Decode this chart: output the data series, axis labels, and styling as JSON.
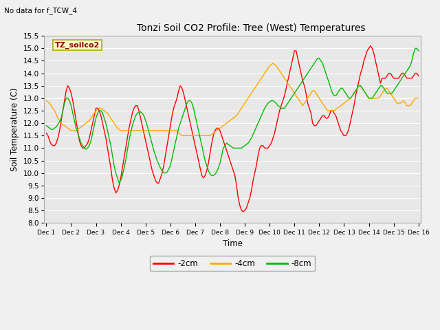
{
  "title": "Tonzi Soil CO2 Profile: Tree (West) Temperatures",
  "subtitle": "No data for f_TCW_4",
  "ylabel": "Soil Temperature (C)",
  "xlabel": "Time",
  "legend_label": "TZ_soilco2",
  "ylim": [
    8.0,
    15.5
  ],
  "yticks": [
    8.0,
    8.5,
    9.0,
    9.5,
    10.0,
    10.5,
    11.0,
    11.5,
    12.0,
    12.5,
    13.0,
    13.5,
    14.0,
    14.5,
    15.0,
    15.5
  ],
  "xtick_labels": [
    "Dec 1",
    "Dec 2",
    "Dec 3",
    "Dec 4",
    "Dec 5",
    "Dec 6",
    "Dec 7",
    "Dec 8",
    "Dec 9",
    "Dec 10",
    "Dec 11",
    "Dec 12",
    "Dec 13",
    "Dec 14",
    "Dec 15",
    "Dec 16"
  ],
  "line_colors": [
    "#ff0000",
    "#ffa500",
    "#00bb00"
  ],
  "line_labels": [
    "-2cm",
    "-4cm",
    "-8cm"
  ],
  "plot_bg": "#e8e8e8",
  "fig_bg": "#f0f0f0",
  "grid_color": "#ffffff",
  "x": [
    0.0,
    0.067,
    0.133,
    0.2,
    0.267,
    0.333,
    0.4,
    0.467,
    0.533,
    0.6,
    0.667,
    0.733,
    0.8,
    0.867,
    0.933,
    1.0,
    1.067,
    1.133,
    1.2,
    1.267,
    1.333,
    1.4,
    1.467,
    1.533,
    1.6,
    1.667,
    1.733,
    1.8,
    1.867,
    1.933,
    2.0,
    2.067,
    2.133,
    2.2,
    2.267,
    2.333,
    2.4,
    2.467,
    2.533,
    2.6,
    2.667,
    2.733,
    2.8,
    2.867,
    2.933,
    3.0,
    3.067,
    3.133,
    3.2,
    3.267,
    3.333,
    3.4,
    3.467,
    3.533,
    3.6,
    3.667,
    3.733,
    3.8,
    3.867,
    3.933,
    4.0,
    4.067,
    4.133,
    4.2,
    4.267,
    4.333,
    4.4,
    4.467,
    4.533,
    4.6,
    4.667,
    4.733,
    4.8,
    4.867,
    4.933,
    5.0,
    5.067,
    5.133,
    5.2,
    5.267,
    5.333,
    5.4,
    5.467,
    5.533,
    5.6,
    5.667,
    5.733,
    5.8,
    5.867,
    5.933,
    6.0,
    6.067,
    6.133,
    6.2,
    6.267,
    6.333,
    6.4,
    6.467,
    6.533,
    6.6,
    6.667,
    6.733,
    6.8,
    6.867,
    6.933,
    7.0,
    7.067,
    7.133,
    7.2,
    7.267,
    7.333,
    7.4,
    7.467,
    7.533,
    7.6,
    7.667,
    7.733,
    7.8,
    7.867,
    7.933,
    8.0,
    8.067,
    8.133,
    8.2,
    8.267,
    8.333,
    8.4,
    8.467,
    8.533,
    8.6,
    8.667,
    8.733,
    8.8,
    8.867,
    8.933,
    9.0,
    9.067,
    9.133,
    9.2,
    9.267,
    9.333,
    9.4,
    9.467,
    9.533,
    9.6,
    9.667,
    9.733,
    9.8,
    9.867,
    9.933,
    10.0,
    10.067,
    10.133,
    10.2,
    10.267,
    10.333,
    10.4,
    10.467,
    10.533,
    10.6,
    10.667,
    10.733,
    10.8,
    10.867,
    10.933,
    11.0,
    11.067,
    11.133,
    11.2,
    11.267,
    11.333,
    11.4,
    11.467,
    11.533,
    11.6,
    11.667,
    11.733,
    11.8,
    11.867,
    11.933,
    12.0,
    12.067,
    12.133,
    12.2,
    12.267,
    12.333,
    12.4,
    12.467,
    12.533,
    12.6,
    12.667,
    12.733,
    12.8,
    12.867,
    12.933,
    13.0,
    13.067,
    13.133,
    13.2,
    13.267,
    13.333,
    13.4,
    13.467,
    13.533,
    13.6,
    13.667,
    13.733,
    13.8,
    13.867,
    13.933,
    14.0,
    14.067,
    14.133,
    14.2,
    14.267,
    14.333,
    14.4,
    14.467,
    14.533,
    14.6,
    14.667,
    14.733,
    14.8,
    14.867,
    14.933,
    15.0
  ],
  "y_2cm": [
    11.6,
    11.5,
    11.3,
    11.15,
    11.1,
    11.1,
    11.2,
    11.4,
    11.7,
    12.1,
    12.5,
    12.9,
    13.3,
    13.5,
    13.4,
    13.2,
    12.9,
    12.5,
    12.1,
    11.7,
    11.3,
    11.1,
    11.0,
    11.0,
    11.1,
    11.2,
    11.4,
    11.7,
    12.0,
    12.3,
    12.6,
    12.6,
    12.5,
    12.3,
    12.0,
    11.7,
    11.4,
    11.0,
    10.6,
    10.2,
    9.7,
    9.4,
    9.2,
    9.3,
    9.5,
    9.8,
    10.2,
    10.6,
    11.0,
    11.4,
    11.8,
    12.1,
    12.4,
    12.6,
    12.7,
    12.7,
    12.5,
    12.2,
    11.9,
    11.6,
    11.3,
    11.0,
    10.7,
    10.4,
    10.1,
    9.9,
    9.7,
    9.6,
    9.6,
    9.8,
    10.0,
    10.3,
    10.7,
    11.1,
    11.5,
    11.9,
    12.3,
    12.6,
    12.8,
    13.0,
    13.3,
    13.5,
    13.4,
    13.2,
    12.9,
    12.6,
    12.3,
    12.0,
    11.7,
    11.4,
    11.1,
    10.8,
    10.5,
    10.2,
    9.9,
    9.8,
    9.9,
    10.1,
    10.4,
    10.8,
    11.2,
    11.5,
    11.7,
    11.8,
    11.8,
    11.7,
    11.5,
    11.3,
    11.1,
    10.9,
    10.7,
    10.5,
    10.3,
    10.1,
    9.9,
    9.5,
    9.0,
    8.7,
    8.5,
    8.45,
    8.5,
    8.6,
    8.8,
    9.0,
    9.3,
    9.7,
    10.0,
    10.3,
    10.7,
    11.0,
    11.1,
    11.1,
    11.0,
    11.0,
    11.0,
    11.1,
    11.2,
    11.4,
    11.6,
    11.9,
    12.2,
    12.5,
    12.7,
    12.9,
    13.1,
    13.4,
    13.7,
    14.0,
    14.3,
    14.6,
    14.9,
    14.9,
    14.6,
    14.3,
    14.0,
    13.7,
    13.5,
    13.2,
    12.8,
    12.6,
    12.4,
    12.0,
    11.9,
    11.9,
    12.0,
    12.1,
    12.2,
    12.3,
    12.3,
    12.2,
    12.2,
    12.3,
    12.5,
    12.5,
    12.4,
    12.3,
    12.1,
    11.9,
    11.7,
    11.6,
    11.5,
    11.5,
    11.6,
    11.8,
    12.1,
    12.4,
    12.7,
    13.1,
    13.4,
    13.7,
    14.0,
    14.2,
    14.5,
    14.7,
    14.9,
    15.0,
    15.1,
    15.0,
    14.8,
    14.5,
    14.2,
    13.9,
    13.6,
    13.8,
    13.8,
    13.8,
    13.9,
    14.0,
    14.0,
    13.9,
    13.8,
    13.8,
    13.8,
    13.8,
    13.9,
    14.0,
    14.0,
    13.9,
    13.8,
    13.8,
    13.8,
    13.8,
    13.9,
    14.0,
    14.0,
    13.9,
    13.9
  ],
  "y_4cm": [
    12.9,
    12.85,
    12.8,
    12.7,
    12.6,
    12.5,
    12.35,
    12.2,
    12.1,
    12.0,
    11.95,
    11.9,
    11.85,
    11.8,
    11.75,
    11.7,
    11.7,
    11.7,
    11.7,
    11.75,
    11.8,
    11.85,
    11.9,
    11.95,
    12.0,
    12.05,
    12.1,
    12.2,
    12.3,
    12.4,
    12.5,
    12.55,
    12.6,
    12.6,
    12.55,
    12.5,
    12.45,
    12.4,
    12.3,
    12.2,
    12.1,
    12.0,
    11.9,
    11.8,
    11.75,
    11.7,
    11.7,
    11.7,
    11.7,
    11.7,
    11.7,
    11.7,
    11.7,
    11.7,
    11.7,
    11.7,
    11.7,
    11.7,
    11.7,
    11.7,
    11.7,
    11.7,
    11.7,
    11.7,
    11.7,
    11.7,
    11.7,
    11.7,
    11.7,
    11.7,
    11.7,
    11.7,
    11.7,
    11.7,
    11.7,
    11.7,
    11.7,
    11.7,
    11.7,
    11.7,
    11.6,
    11.55,
    11.5,
    11.5,
    11.5,
    11.5,
    11.5,
    11.5,
    11.5,
    11.5,
    11.5,
    11.5,
    11.5,
    11.5,
    11.5,
    11.5,
    11.5,
    11.5,
    11.5,
    11.5,
    11.55,
    11.6,
    11.65,
    11.7,
    11.75,
    11.8,
    11.85,
    11.9,
    11.95,
    12.0,
    12.05,
    12.1,
    12.15,
    12.2,
    12.25,
    12.3,
    12.4,
    12.5,
    12.6,
    12.7,
    12.8,
    12.9,
    13.0,
    13.1,
    13.2,
    13.3,
    13.4,
    13.5,
    13.6,
    13.7,
    13.8,
    13.9,
    14.0,
    14.1,
    14.2,
    14.3,
    14.35,
    14.4,
    14.35,
    14.3,
    14.2,
    14.1,
    14.0,
    13.9,
    13.8,
    13.7,
    13.6,
    13.5,
    13.4,
    13.3,
    13.2,
    13.1,
    13.0,
    12.9,
    12.8,
    12.7,
    12.8,
    12.9,
    13.0,
    13.1,
    13.2,
    13.3,
    13.3,
    13.2,
    13.1,
    13.0,
    12.9,
    12.8,
    12.7,
    12.6,
    12.5,
    12.5,
    12.5,
    12.5,
    12.5,
    12.55,
    12.6,
    12.65,
    12.7,
    12.75,
    12.8,
    12.85,
    12.9,
    12.95,
    13.0,
    13.1,
    13.2,
    13.3,
    13.4,
    13.5,
    13.5,
    13.4,
    13.3,
    13.2,
    13.1,
    13.0,
    13.0,
    13.0,
    13.0,
    13.0,
    13.0,
    13.0,
    13.1,
    13.2,
    13.3,
    13.4,
    13.4,
    13.3,
    13.2,
    13.1,
    13.0,
    12.9,
    12.8,
    12.8,
    12.8,
    12.85,
    12.9,
    12.8,
    12.7,
    12.7,
    12.7,
    12.8,
    12.9,
    13.0,
    13.0,
    13.0,
    13.0
  ],
  "y_8cm": [
    11.9,
    11.85,
    11.8,
    11.75,
    11.75,
    11.8,
    11.85,
    11.95,
    12.05,
    12.2,
    12.5,
    12.8,
    13.0,
    13.0,
    12.9,
    12.7,
    12.4,
    12.1,
    11.8,
    11.6,
    11.4,
    11.2,
    11.1,
    11.0,
    10.95,
    11.0,
    11.1,
    11.3,
    11.6,
    11.9,
    12.2,
    12.4,
    12.5,
    12.5,
    12.4,
    12.2,
    12.0,
    11.7,
    11.4,
    11.1,
    10.7,
    10.3,
    10.0,
    9.8,
    9.6,
    9.7,
    9.9,
    10.2,
    10.5,
    10.9,
    11.3,
    11.6,
    11.9,
    12.1,
    12.3,
    12.4,
    12.45,
    12.45,
    12.4,
    12.3,
    12.1,
    11.9,
    11.65,
    11.4,
    11.15,
    10.9,
    10.7,
    10.5,
    10.35,
    10.2,
    10.1,
    10.0,
    10.0,
    10.05,
    10.15,
    10.3,
    10.6,
    10.9,
    11.2,
    11.5,
    11.8,
    12.0,
    12.2,
    12.4,
    12.6,
    12.8,
    12.9,
    12.9,
    12.8,
    12.6,
    12.3,
    12.0,
    11.7,
    11.4,
    11.1,
    10.8,
    10.5,
    10.3,
    10.1,
    9.95,
    9.9,
    9.9,
    9.95,
    10.05,
    10.2,
    10.4,
    10.7,
    11.0,
    11.1,
    11.2,
    11.15,
    11.1,
    11.05,
    11.0,
    11.0,
    11.0,
    11.0,
    11.0,
    11.0,
    11.05,
    11.1,
    11.15,
    11.2,
    11.3,
    11.4,
    11.55,
    11.7,
    11.85,
    12.0,
    12.15,
    12.3,
    12.45,
    12.6,
    12.7,
    12.8,
    12.85,
    12.9,
    12.9,
    12.85,
    12.8,
    12.7,
    12.65,
    12.6,
    12.6,
    12.6,
    12.7,
    12.8,
    12.9,
    13.0,
    13.1,
    13.2,
    13.3,
    13.4,
    13.5,
    13.6,
    13.7,
    13.8,
    13.9,
    14.0,
    14.1,
    14.2,
    14.3,
    14.4,
    14.5,
    14.6,
    14.6,
    14.5,
    14.4,
    14.2,
    14.0,
    13.8,
    13.6,
    13.4,
    13.2,
    13.1,
    13.1,
    13.2,
    13.3,
    13.4,
    13.4,
    13.3,
    13.2,
    13.1,
    13.0,
    13.0,
    13.1,
    13.2,
    13.3,
    13.4,
    13.5,
    13.5,
    13.4,
    13.3,
    13.2,
    13.1,
    13.0,
    13.0,
    13.0,
    13.1,
    13.2,
    13.3,
    13.4,
    13.5,
    13.5,
    13.4,
    13.3,
    13.2,
    13.2,
    13.2,
    13.2,
    13.3,
    13.4,
    13.5,
    13.6,
    13.7,
    13.8,
    13.9,
    14.0,
    14.1,
    14.2,
    14.3,
    14.5,
    14.8,
    15.0,
    15.0,
    14.9,
    14.8
  ]
}
